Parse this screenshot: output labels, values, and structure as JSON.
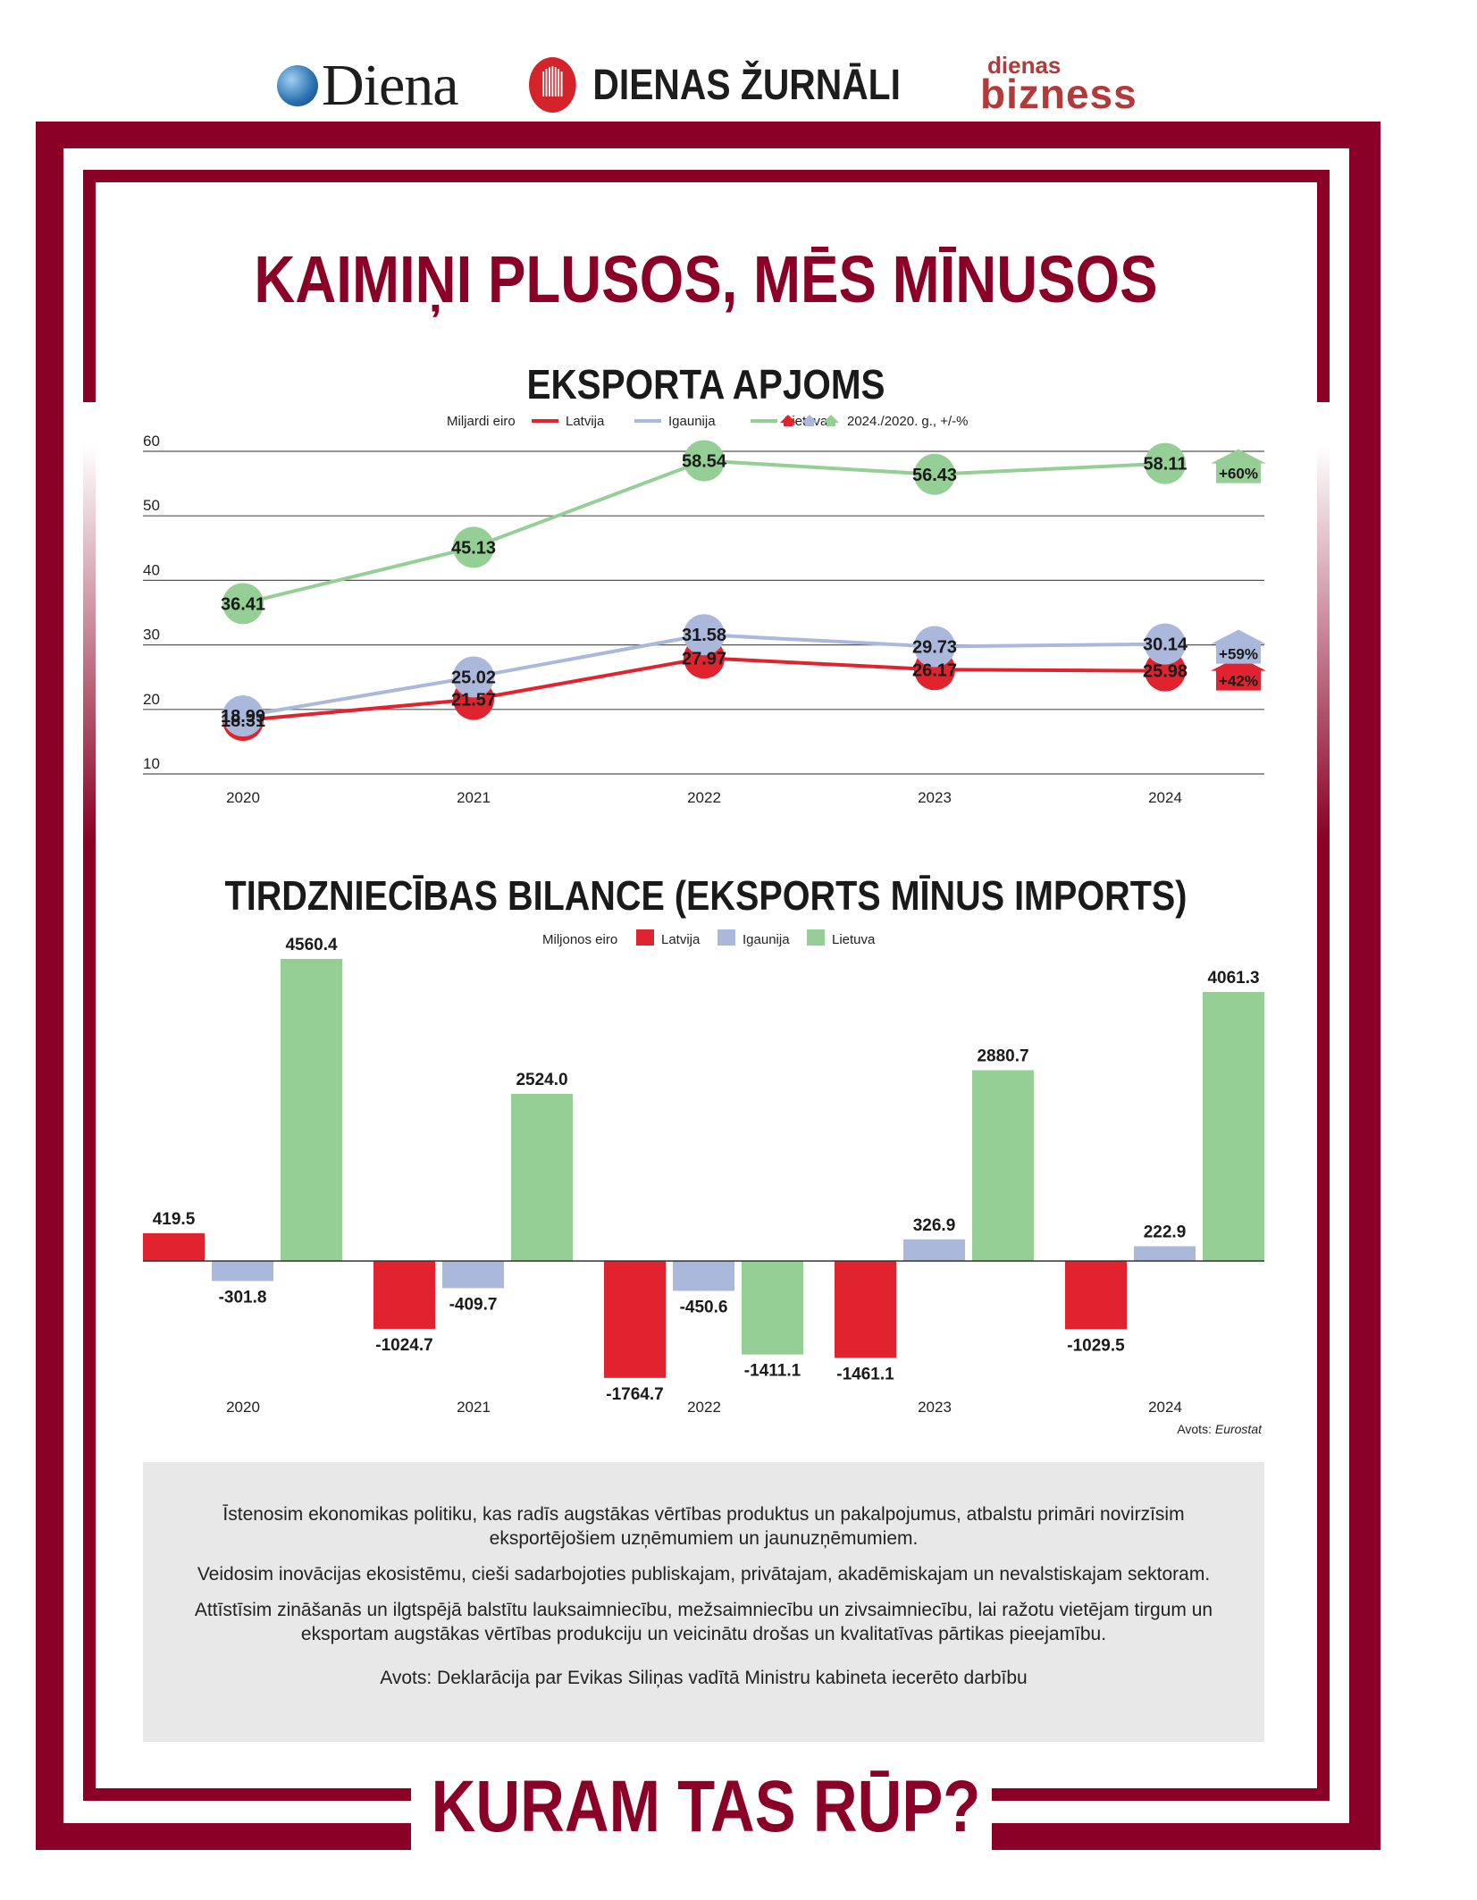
{
  "logos": {
    "diena": "Diena",
    "dienas_zurnali": "DIENAS ŽURNĀLI",
    "dienas_bizness_top": "dienas",
    "dienas_bizness_bottom": "bizness"
  },
  "main_title": "KAIMIŅI PLUSOS, MĒS MĪNUSOS",
  "footer_title": "KURAM TAS RŪP?",
  "colors": {
    "frame": "#8a0026",
    "latvija": "#e0232e",
    "igaunija": "#aab8dc",
    "lietuva": "#96cf96"
  },
  "chart_data": [
    {
      "type": "line",
      "title": "EKSPORTA APJOMS",
      "unit_label": "Miljardi eiro",
      "x": [
        "2020",
        "2021",
        "2022",
        "2023",
        "2024"
      ],
      "ylim": [
        10,
        60
      ],
      "yticks": [
        10,
        20,
        30,
        40,
        50,
        60
      ],
      "grid": true,
      "series": [
        {
          "name": "Latvija",
          "values": [
            18.31,
            21.57,
            27.97,
            26.17,
            25.98
          ],
          "change": "+42%"
        },
        {
          "name": "Igaunija",
          "values": [
            18.99,
            25.02,
            31.58,
            29.73,
            30.14
          ],
          "change": "+59%"
        },
        {
          "name": "Lietuva",
          "values": [
            36.41,
            45.13,
            58.54,
            56.43,
            58.11
          ],
          "change": "+60%"
        }
      ],
      "change_legend": "2024./2020. g., +/-%"
    },
    {
      "type": "bar",
      "title": "TIRDZNIECĪBAS BILANCE (EKSPORTS MĪNUS IMPORTS)",
      "unit_label": "Miljonos eiro",
      "categories": [
        "2020",
        "2021",
        "2022",
        "2023",
        "2024"
      ],
      "series": [
        {
          "name": "Latvija",
          "values": [
            419.5,
            -1024.7,
            -1764.7,
            -1461.1,
            -1029.5
          ]
        },
        {
          "name": "Igaunija",
          "values": [
            -301.8,
            -409.7,
            -450.6,
            326.9,
            222.9
          ]
        },
        {
          "name": "Lietuva",
          "values": [
            4560.4,
            2524.0,
            -1411.1,
            2880.7,
            4061.3
          ]
        }
      ],
      "source_label": "Avots:",
      "source_name": "Eurostat"
    }
  ],
  "info": {
    "p1": "Īstenosim ekonomikas politiku, kas radīs augstākas vērtības produktus un pakalpojumus, atbalstu primāri novirzīsim eksportējošiem uzņēmumiem un jaunuzņēmumiem.",
    "p2": "Veidosim inovācijas ekosistēmu, cieši sadarbojoties publiskajam, privātajam, akadēmiskajam un nevalstiskajam sektoram.",
    "p3": "Attīstīsim zināšanās un ilgtspējā balstītu lauksaimniecību, mežsaimniecību un zivsaimniecību, lai ražotu vietējam tirgum un eksportam augstākas vērtības produkciju un veicinātu drošas un kvalitatīvas pārtikas pieejamību.",
    "source": "Avots: Deklarācija par Evikas Siliņas vadītā Ministru kabineta iecerēto darbību"
  }
}
